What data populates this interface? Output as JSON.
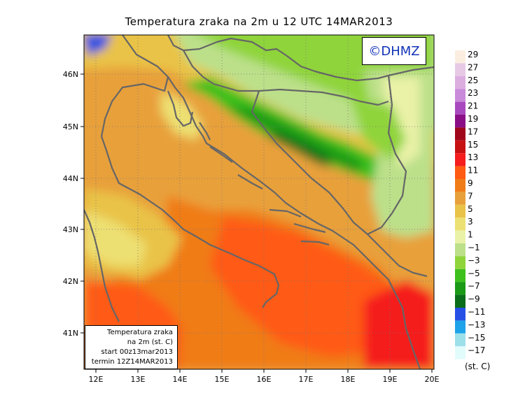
{
  "title": "Temperatura zraka na 2m u 12 UTC 14MAR2013",
  "logo": "©DHMZ",
  "info": {
    "line1": "Temperatura zraka",
    "line2": "na 2m (st. C)",
    "line3": "start 00z13mar2013",
    "line4": "termin 12Z14MAR2013"
  },
  "lat_labels": [
    "46N",
    "45N",
    "44N",
    "43N",
    "42N",
    "41N"
  ],
  "lon_labels": [
    "12E",
    "13E",
    "14E",
    "15E",
    "16E",
    "17E",
    "18E",
    "19E",
    "20E"
  ],
  "legend": {
    "unit": "(st. C)",
    "labels": [
      "29",
      "27",
      "25",
      "23",
      "21",
      "19",
      "17",
      "15",
      "13",
      "11",
      "9",
      "7",
      "5",
      "3",
      "1",
      "−1",
      "−3",
      "−5",
      "−7",
      "−9",
      "−11",
      "−13",
      "−15",
      "−17"
    ],
    "colors": [
      "#fbeee0",
      "#e7c9e6",
      "#dcaee0",
      "#c98ad9",
      "#a849bf",
      "#8a0f86",
      "#a1071a",
      "#c71212",
      "#f51d1d",
      "#ff5a12",
      "#f07c17",
      "#e8a03a",
      "#e9c347",
      "#ede072",
      "#eaf2a8",
      "#bce08a",
      "#8fd43a",
      "#3ec01c",
      "#1a9a17",
      "#0a6d1a",
      "#2650e5",
      "#1ea2e9",
      "#9ee0ea",
      "#e2fbfb"
    ]
  }
}
